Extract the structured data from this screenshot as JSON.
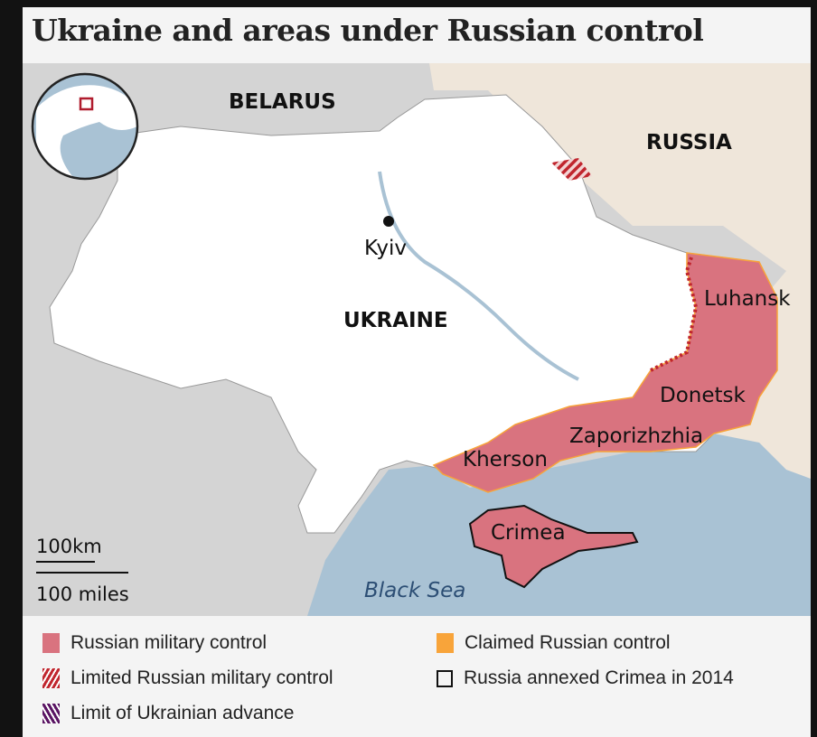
{
  "title": "Ukraine and areas under Russian control",
  "map": {
    "labels": {
      "belarus": "BELARUS",
      "russia": "RUSSIA",
      "ukraine": "UKRAINE",
      "kyiv": "Kyiv",
      "luhansk": "Luhansk",
      "donetsk": "Donetsk",
      "zaporizhzhia": "Zaporizhzhia",
      "kherson": "Kherson",
      "crimea": "Crimea",
      "black_sea": "Black Sea"
    },
    "scale": {
      "km": "100km",
      "miles": "100 miles"
    }
  },
  "legend": [
    {
      "label": "Russian military control",
      "color": "#d9737f",
      "style": "solid"
    },
    {
      "label": "Claimed Russian control",
      "color": "#f8a43a",
      "style": "solid"
    },
    {
      "label": "Limited Russian military control",
      "color": "#c0262e",
      "style": "hatched"
    },
    {
      "label": "Russia annexed Crimea in 2014",
      "color": "#000000",
      "style": "outline"
    },
    {
      "label": "Limit of Ukrainian advance",
      "color": "#5a1463",
      "style": "hatched"
    }
  ],
  "colors": {
    "ukraine": "#ffffff",
    "russia": "#efe6da",
    "neighbours": "#d4d4d4",
    "sea": "#a9c2d4",
    "control": "#d9737f"
  }
}
